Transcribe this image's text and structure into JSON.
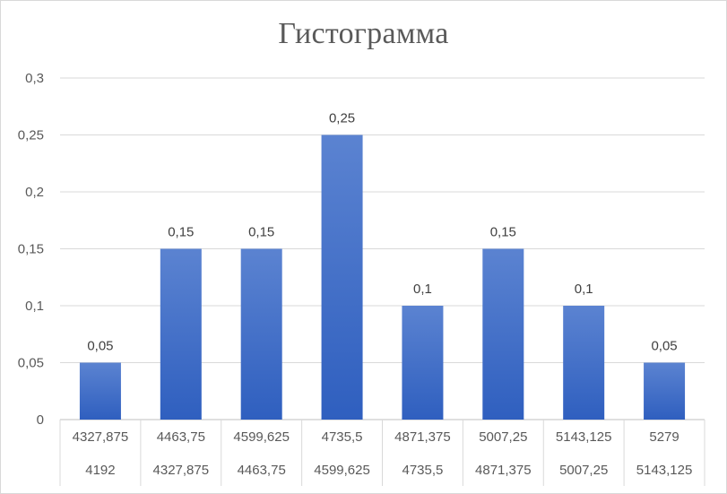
{
  "chart_data": {
    "type": "bar",
    "title": "Гистограмма",
    "categories": [
      [
        "4327,875",
        "4192"
      ],
      [
        "4463,75",
        "4327,875"
      ],
      [
        "4599,625",
        "4463,75"
      ],
      [
        "4735,5",
        "4599,625"
      ],
      [
        "4871,375",
        "4735,5"
      ],
      [
        "5007,25",
        "4871,375"
      ],
      [
        "5143,125",
        "5007,25"
      ],
      [
        "5279",
        "5143,125"
      ]
    ],
    "values": [
      0.05,
      0.15,
      0.15,
      0.25,
      0.1,
      0.15,
      0.1,
      0.05
    ],
    "data_labels": [
      "0,05",
      "0,15",
      "0,15",
      "0,25",
      "0,1",
      "0,15",
      "0,1",
      "0,05"
    ],
    "ylim": [
      0,
      0.3
    ],
    "yticks": [
      0,
      0.05,
      0.1,
      0.15,
      0.2,
      0.25,
      0.3
    ],
    "ytick_labels": [
      "0",
      "0,05",
      "0,1",
      "0,15",
      "0,2",
      "0,25",
      "0,3"
    ],
    "grid": true,
    "colors": {
      "bar_top": "#5b83d1",
      "bar_bottom": "#2f5fbf",
      "grid": "#d9d9d9",
      "text": "#595959"
    }
  }
}
